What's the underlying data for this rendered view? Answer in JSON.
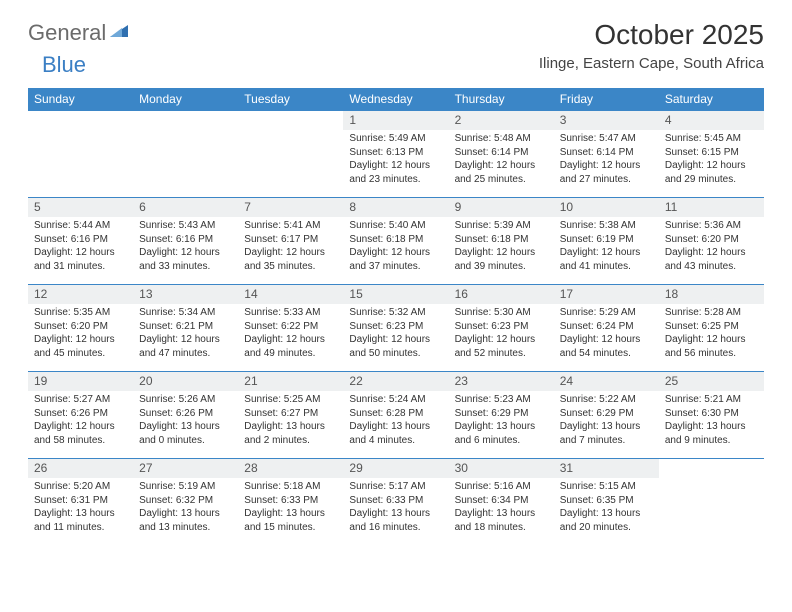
{
  "brand": {
    "general": "General",
    "blue": "Blue"
  },
  "title": "October 2025",
  "location": "Ilinge, Eastern Cape, South Africa",
  "header_bg": "#3b86c7",
  "header_text": "#ffffff",
  "daynum_bg": "#eef0f1",
  "border_color": "#3b86c7",
  "day_names": [
    "Sunday",
    "Monday",
    "Tuesday",
    "Wednesday",
    "Thursday",
    "Friday",
    "Saturday"
  ],
  "weeks": [
    [
      null,
      null,
      null,
      {
        "n": "1",
        "sr": "5:49 AM",
        "ss": "6:13 PM",
        "dl": "12 hours and 23 minutes."
      },
      {
        "n": "2",
        "sr": "5:48 AM",
        "ss": "6:14 PM",
        "dl": "12 hours and 25 minutes."
      },
      {
        "n": "3",
        "sr": "5:47 AM",
        "ss": "6:14 PM",
        "dl": "12 hours and 27 minutes."
      },
      {
        "n": "4",
        "sr": "5:45 AM",
        "ss": "6:15 PM",
        "dl": "12 hours and 29 minutes."
      }
    ],
    [
      {
        "n": "5",
        "sr": "5:44 AM",
        "ss": "6:16 PM",
        "dl": "12 hours and 31 minutes."
      },
      {
        "n": "6",
        "sr": "5:43 AM",
        "ss": "6:16 PM",
        "dl": "12 hours and 33 minutes."
      },
      {
        "n": "7",
        "sr": "5:41 AM",
        "ss": "6:17 PM",
        "dl": "12 hours and 35 minutes."
      },
      {
        "n": "8",
        "sr": "5:40 AM",
        "ss": "6:18 PM",
        "dl": "12 hours and 37 minutes."
      },
      {
        "n": "9",
        "sr": "5:39 AM",
        "ss": "6:18 PM",
        "dl": "12 hours and 39 minutes."
      },
      {
        "n": "10",
        "sr": "5:38 AM",
        "ss": "6:19 PM",
        "dl": "12 hours and 41 minutes."
      },
      {
        "n": "11",
        "sr": "5:36 AM",
        "ss": "6:20 PM",
        "dl": "12 hours and 43 minutes."
      }
    ],
    [
      {
        "n": "12",
        "sr": "5:35 AM",
        "ss": "6:20 PM",
        "dl": "12 hours and 45 minutes."
      },
      {
        "n": "13",
        "sr": "5:34 AM",
        "ss": "6:21 PM",
        "dl": "12 hours and 47 minutes."
      },
      {
        "n": "14",
        "sr": "5:33 AM",
        "ss": "6:22 PM",
        "dl": "12 hours and 49 minutes."
      },
      {
        "n": "15",
        "sr": "5:32 AM",
        "ss": "6:23 PM",
        "dl": "12 hours and 50 minutes."
      },
      {
        "n": "16",
        "sr": "5:30 AM",
        "ss": "6:23 PM",
        "dl": "12 hours and 52 minutes."
      },
      {
        "n": "17",
        "sr": "5:29 AM",
        "ss": "6:24 PM",
        "dl": "12 hours and 54 minutes."
      },
      {
        "n": "18",
        "sr": "5:28 AM",
        "ss": "6:25 PM",
        "dl": "12 hours and 56 minutes."
      }
    ],
    [
      {
        "n": "19",
        "sr": "5:27 AM",
        "ss": "6:26 PM",
        "dl": "12 hours and 58 minutes."
      },
      {
        "n": "20",
        "sr": "5:26 AM",
        "ss": "6:26 PM",
        "dl": "13 hours and 0 minutes."
      },
      {
        "n": "21",
        "sr": "5:25 AM",
        "ss": "6:27 PM",
        "dl": "13 hours and 2 minutes."
      },
      {
        "n": "22",
        "sr": "5:24 AM",
        "ss": "6:28 PM",
        "dl": "13 hours and 4 minutes."
      },
      {
        "n": "23",
        "sr": "5:23 AM",
        "ss": "6:29 PM",
        "dl": "13 hours and 6 minutes."
      },
      {
        "n": "24",
        "sr": "5:22 AM",
        "ss": "6:29 PM",
        "dl": "13 hours and 7 minutes."
      },
      {
        "n": "25",
        "sr": "5:21 AM",
        "ss": "6:30 PM",
        "dl": "13 hours and 9 minutes."
      }
    ],
    [
      {
        "n": "26",
        "sr": "5:20 AM",
        "ss": "6:31 PM",
        "dl": "13 hours and 11 minutes."
      },
      {
        "n": "27",
        "sr": "5:19 AM",
        "ss": "6:32 PM",
        "dl": "13 hours and 13 minutes."
      },
      {
        "n": "28",
        "sr": "5:18 AM",
        "ss": "6:33 PM",
        "dl": "13 hours and 15 minutes."
      },
      {
        "n": "29",
        "sr": "5:17 AM",
        "ss": "6:33 PM",
        "dl": "13 hours and 16 minutes."
      },
      {
        "n": "30",
        "sr": "5:16 AM",
        "ss": "6:34 PM",
        "dl": "13 hours and 18 minutes."
      },
      {
        "n": "31",
        "sr": "5:15 AM",
        "ss": "6:35 PM",
        "dl": "13 hours and 20 minutes."
      },
      null
    ]
  ],
  "labels": {
    "sunrise": "Sunrise:",
    "sunset": "Sunset:",
    "daylight": "Daylight:"
  }
}
